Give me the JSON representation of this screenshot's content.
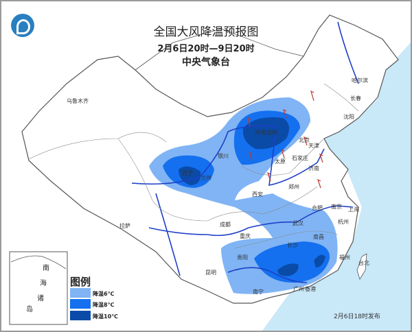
{
  "title": "全国大风降温预报图",
  "period": "2月6日20时—9日20时",
  "issuer": "中央气象台",
  "issued": "2月6日18时发布",
  "legend": {
    "title": "图例",
    "items": [
      {
        "label": "降温6℃",
        "color": "#80b4f4"
      },
      {
        "label": "降温8℃",
        "color": "#1470ee"
      },
      {
        "label": "降温10℃",
        "color": "#0a4ba8"
      }
    ]
  },
  "colors": {
    "sea": "#c9e8f8",
    "river": "#1e3fc8",
    "border": "#555555",
    "wind_barb": "#c0392b"
  },
  "inset_labels": [
    "南",
    "海",
    "诸",
    "岛"
  ],
  "cities": [
    "乌鲁木齐",
    "拉萨",
    "西宁",
    "兰州",
    "银川",
    "呼和浩特",
    "北京",
    "天津",
    "石家庄",
    "太原",
    "济南",
    "郑州",
    "西安",
    "成都",
    "重庆",
    "贵阳",
    "昆明",
    "南宁",
    "长沙",
    "南昌",
    "武汉",
    "合肥",
    "南京",
    "上海",
    "杭州",
    "福州",
    "台北",
    "广州",
    "香港",
    "沈阳",
    "长春",
    "哈尔滨"
  ]
}
